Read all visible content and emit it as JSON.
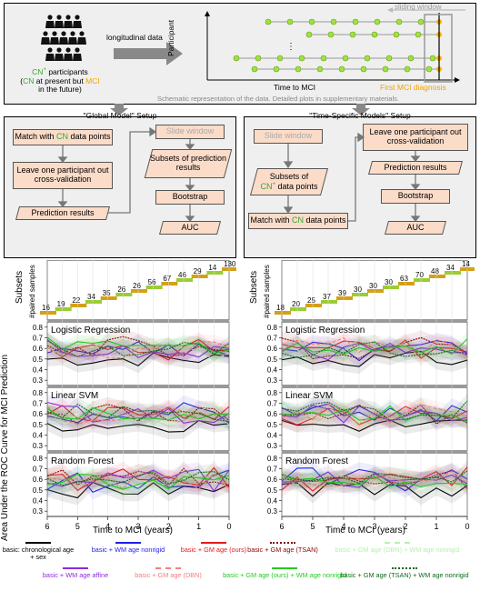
{
  "schematic": {
    "arrow_label": "longitudinal data",
    "participants_prefix": "CN",
    "participants_sup": "+",
    "participants_suffix": " participants",
    "participants_note_open": "(",
    "participants_note_cn": "CN",
    "participants_note_mid": " at present but ",
    "participants_note_mci": "MCI",
    "participants_note_end": "in the future)",
    "y_axis_label": "Participant",
    "x_axis_label": "Time to MCI",
    "first_mci_label": "First MCI diagnosis",
    "sliding_window_label": "sliding window",
    "ellipsis": "⋮",
    "caption": "Schematic representation of the data. Detailed plots in supplementary materials."
  },
  "global_setup": {
    "title": "\"Global Model\" Setup",
    "match_prefix": "Match with ",
    "match_cn": "CN",
    "match_suffix": " data points",
    "loo": "Leave one participant out cross-validation",
    "prediction": "Prediction results",
    "slide": "Slide window",
    "subsets": "Subsets of prediction results",
    "bootstrap": "Bootstrap",
    "auc": "AUC"
  },
  "specific_setup": {
    "title": "\"Time-Specific Models\" Setup",
    "slide": "Slide window",
    "subsets_prefix": "Subsets of",
    "subsets_cn": "CN",
    "subsets_sup": "+",
    "subsets_suffix": " data points",
    "match_prefix": "Match with ",
    "match_cn": "CN",
    "match_suffix": " data points",
    "loo": "Leave one participant out cross-validation",
    "prediction": "Prediction results",
    "bootstrap": "Bootstrap",
    "auc": "AUC"
  },
  "plots": {
    "ylabel": "Area Under the ROC Curve for MCI Prediction",
    "subsets_label": "Subsets",
    "paired_label": "#paired samples",
    "xlabel": "Time to MCI (years)",
    "xticks": [
      "6",
      "5",
      "4",
      "3",
      "2",
      "1",
      "0"
    ],
    "yticks": [
      "0.8",
      "0.7",
      "0.6",
      "0.5",
      "0.4",
      "0.3"
    ],
    "panels": [
      "Logistic Regression",
      "Linear SVM",
      "Random Forest"
    ],
    "left_counts": [
      "16",
      "19",
      "22",
      "34",
      "35",
      "26",
      "26",
      "56",
      "67",
      "46",
      "29",
      "14",
      "130"
    ],
    "right_counts": [
      "18",
      "20",
      "25",
      "37",
      "39",
      "30",
      "30",
      "30",
      "63",
      "70",
      "48",
      "34",
      "14"
    ]
  },
  "colors": {
    "black": "#000000",
    "blue": "#1f1fe6",
    "red": "#e41a1c",
    "darkred": "#8b0000",
    "lightgreen": "#b8f0b0",
    "purple": "#8a2be2",
    "pink": "#f08080",
    "green": "#22cc22",
    "darkgreen": "#0f6b1a",
    "palegreen": "#a6d99a"
  },
  "legend": [
    {
      "label": "basic: chronological age + sex",
      "color": "#000000",
      "style": "solid"
    },
    {
      "label": "basic + WM age nonrigid",
      "color": "#1f1fe6",
      "style": "solid"
    },
    {
      "label": "basic + GM age (ours)",
      "color": "#e41a1c",
      "style": "solid"
    },
    {
      "label": "basic + GM age (TSAN)",
      "color": "#8b0000",
      "style": "dotted"
    },
    {
      "label": "basic + GM age (DBN) + WM age nonrigid",
      "color": "#b8f0b0",
      "style": "dashed"
    },
    {
      "label": "basic + WM age affine",
      "color": "#8a2be2",
      "style": "solid"
    },
    {
      "label": "basic + GM age (DBN)",
      "color": "#f08080",
      "style": "dashed"
    },
    {
      "label": "basic + GM age (ours) + WM age nonrigid",
      "color": "#22cc22",
      "style": "solid"
    },
    {
      "label": "basic + GM age (TSAN) + WM age nonrigid",
      "color": "#0f6b1a",
      "style": "dotted"
    }
  ]
}
